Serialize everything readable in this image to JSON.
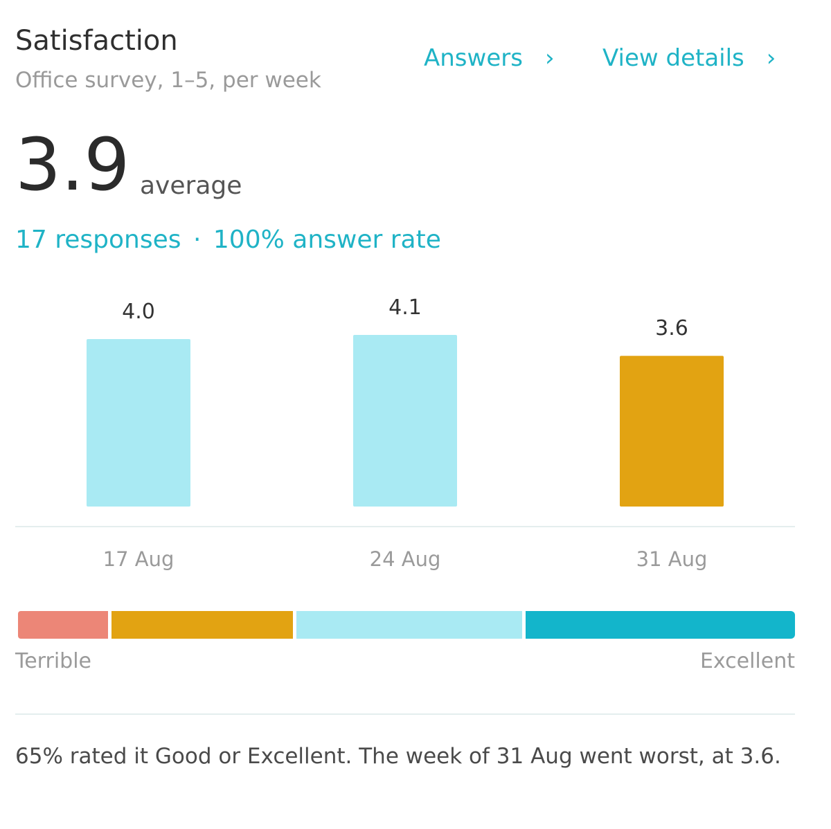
{
  "header": {
    "title": "Satisfaction",
    "subtitle": "Office survey, 1–5, per week",
    "answers_label": "Answers",
    "details_label": "View details"
  },
  "summary_stats": {
    "average": "3.9",
    "average_label": "average",
    "responses": "17 responses",
    "separator": "·",
    "answer_rate": "100% answer rate"
  },
  "chart_data": {
    "type": "bar",
    "categories": [
      "17 Aug",
      "24 Aug",
      "31 Aug"
    ],
    "values": [
      4.0,
      4.1,
      3.6
    ],
    "value_labels": [
      "4.0",
      "4.1",
      "3.6"
    ],
    "bar_colors": [
      "#a9eaf3",
      "#a9eaf3",
      "#e2a312"
    ],
    "ylim": [
      0,
      5
    ],
    "grid": false
  },
  "scale": {
    "low_label": "Terrible",
    "high_label": "Excellent",
    "colors": {
      "terrible": "#ec8677",
      "poor": "#e2a312",
      "good": "#a9eaf3",
      "excellent": "#13b5cb"
    }
  },
  "footer": {
    "summary": "65% rated it Good or Excellent. The week of 31 Aug went worst, at 3.6."
  },
  "icons": {
    "answers_chevron": "chevron-right-icon",
    "details_chevron": "chevron-right-icon"
  },
  "colors": {
    "accent": "#1fb3c6"
  }
}
